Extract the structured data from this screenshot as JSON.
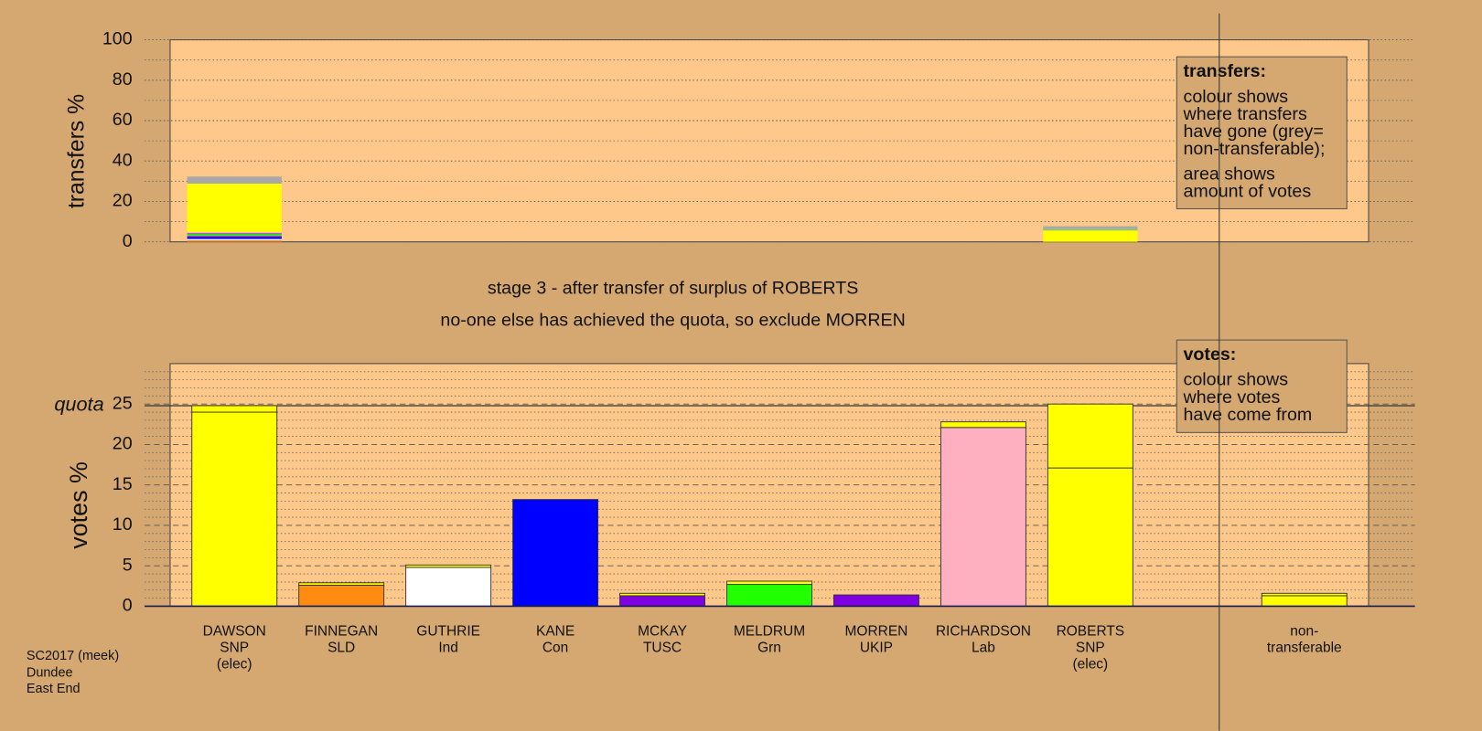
{
  "footer": [
    "SC2017 (meek)",
    "Dundee",
    "East End"
  ],
  "stage_text": [
    "stage 3 - after transfer of surplus of ROBERTS",
    "no-one else has achieved the quota, so exclude MORREN"
  ],
  "chart_data": [
    {
      "type": "stacked-bar",
      "y_label": "transfers %",
      "ylim": [
        0,
        100
      ],
      "yticks": [
        0,
        20,
        40,
        60,
        80,
        100
      ],
      "minor_grid": [
        10,
        30,
        50,
        70,
        90
      ],
      "legend": {
        "title": "transfers:",
        "paragraphs": [
          [
            "colour shows",
            "where transfers",
            "have gone (grey=",
            "non-transferable);"
          ],
          [
            "area shows",
            "amount of votes"
          ]
        ]
      },
      "bars": [
        [
          {
            "color": "#ff8c10",
            "value": 0.8
          },
          {
            "color": "#ffffff",
            "value": 0.6
          },
          {
            "color": "#0000ff",
            "value": 0.9
          },
          {
            "color": "#7f00e0",
            "value": 0.6
          },
          {
            "color": "#22ff00",
            "value": 0.9
          },
          {
            "color": "#7f00e0",
            "value": 0.4
          },
          {
            "color": "#ffb0c0",
            "value": 0.6
          },
          {
            "color": "#ffff00",
            "value": 24
          },
          {
            "color": "#a8a8a8",
            "value": 3.5
          }
        ],
        null,
        null,
        null,
        null,
        null,
        null,
        null,
        [
          {
            "color": "#ffff00",
            "value": 5.6
          },
          {
            "color": "#7fd060",
            "value": 0.7
          },
          {
            "color": "#a8a8a8",
            "value": 1.4
          }
        ],
        null,
        null
      ]
    },
    {
      "type": "stacked-bar",
      "y_label": "votes %",
      "ylim": [
        0,
        30
      ],
      "yticks": [
        0,
        5,
        10,
        15,
        20,
        25
      ],
      "minor_grid": [
        1,
        2,
        3,
        4,
        6,
        7,
        8,
        9,
        11,
        12,
        13,
        14,
        16,
        17,
        18,
        19,
        21,
        22,
        23,
        24,
        26,
        27,
        28,
        29
      ],
      "quota": 24.8,
      "quota_label": "quota",
      "legend": {
        "title": "votes:",
        "paragraphs": [
          [
            "colour shows",
            "where votes",
            "have come from"
          ]
        ]
      },
      "categories": [
        [
          "DAWSON",
          "SNP",
          "(elec)"
        ],
        [
          "FINNEGAN",
          "SLD"
        ],
        [
          "GUTHRIE",
          "Ind"
        ],
        [
          "KANE",
          "Con"
        ],
        [
          "MCKAY",
          "TUSC"
        ],
        [
          "MELDRUM",
          "Grn"
        ],
        [
          "MORREN",
          "UKIP"
        ],
        [
          "RICHARDSON",
          "Lab"
        ],
        [
          "ROBERTS",
          "SNP",
          "(elec)"
        ],
        null,
        [
          "non-",
          "transferable"
        ]
      ],
      "bars": [
        [
          {
            "color": "#ffff00",
            "value": 24.0
          },
          {
            "color": "#ffff00",
            "value": 0.8
          }
        ],
        [
          {
            "color": "#ff8c10",
            "value": 2.6
          },
          {
            "color": "#ffff00",
            "value": 0.3
          }
        ],
        [
          {
            "color": "#ffffff",
            "value": 4.8
          },
          {
            "color": "#ffff00",
            "value": 0.3
          }
        ],
        [
          {
            "color": "#0000ff",
            "value": 13.2
          }
        ],
        [
          {
            "color": "#7f00e0",
            "value": 1.3
          },
          {
            "color": "#ffff00",
            "value": 0.3
          }
        ],
        [
          {
            "color": "#22ff00",
            "value": 2.7
          },
          {
            "color": "#ffff00",
            "value": 0.4
          }
        ],
        [
          {
            "color": "#7f00e0",
            "value": 1.4
          }
        ],
        [
          {
            "color": "#ffb0c0",
            "value": 22.1
          },
          {
            "color": "#ffff00",
            "value": 0.7
          }
        ],
        [
          {
            "color": "#ffff00",
            "value": 17.1
          },
          {
            "color": "#ffff00",
            "value": 7.9
          }
        ],
        null,
        [
          {
            "color": "#ffff00",
            "value": 1.3
          },
          {
            "color": "#ffff00",
            "value": 0.3
          }
        ]
      ]
    }
  ]
}
